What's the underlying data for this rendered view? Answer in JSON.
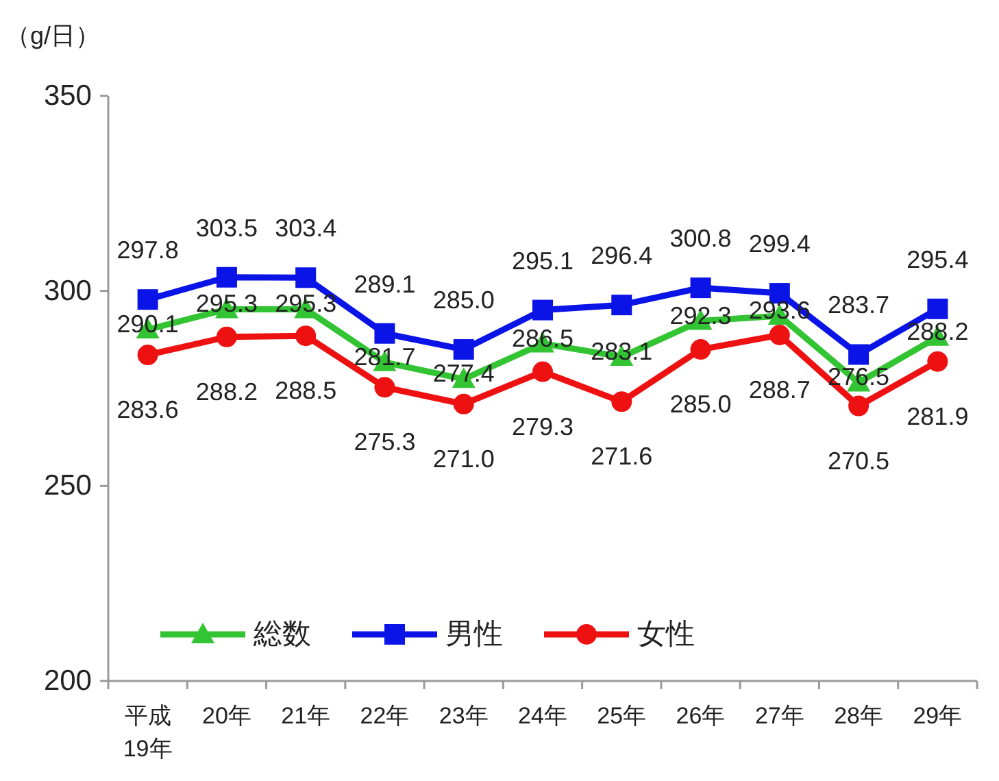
{
  "chart_data": {
    "type": "line",
    "ylabel": "（g/日）",
    "categories": [
      "平成 19年",
      "20年",
      "21年",
      "22年",
      "23年",
      "24年",
      "25年",
      "26年",
      "27年",
      "28年",
      "29年"
    ],
    "ylim": [
      200,
      350
    ],
    "yticks": [
      200,
      250,
      300,
      350
    ],
    "legend": "bottom left",
    "series": [
      {
        "name": "総数",
        "color": "#33c433",
        "marker": "triangle",
        "values": [
          290.1,
          295.3,
          295.3,
          281.7,
          277.4,
          286.5,
          283.1,
          292.3,
          293.6,
          276.5,
          288.2
        ],
        "value_labels": [
          "290.1",
          "295.3",
          "295.3",
          "281.7",
          "277.4",
          "286.5",
          "283.1",
          "292.3",
          "293.6",
          "276.5",
          "288.2"
        ]
      },
      {
        "name": "男性",
        "color": "#0a14e6",
        "marker": "square",
        "values": [
          297.8,
          303.5,
          303.4,
          289.1,
          285.0,
          295.1,
          296.4,
          300.8,
          299.4,
          283.7,
          295.4
        ],
        "value_labels": [
          "297.8",
          "303.5",
          "303.4",
          "289.1",
          "285.0",
          "295.1",
          "296.4",
          "300.8",
          "299.4",
          "283.7",
          "295.4"
        ]
      },
      {
        "name": "女性",
        "color": "#ee1111",
        "marker": "circle",
        "values": [
          283.6,
          288.2,
          288.5,
          275.3,
          271.0,
          279.3,
          271.6,
          285.0,
          288.7,
          270.5,
          281.9
        ],
        "value_labels": [
          "283.6",
          "288.2",
          "288.5",
          "275.3",
          "271.0",
          "279.3",
          "271.6",
          "285.0",
          "288.7",
          "270.5",
          "281.9"
        ]
      }
    ]
  }
}
